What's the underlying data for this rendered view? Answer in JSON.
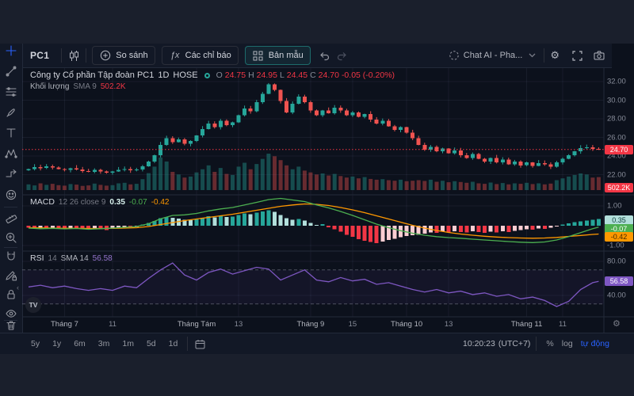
{
  "top_toolbar": {
    "symbol": "PC1",
    "compare_label": "So sánh",
    "indicators_label": "Các chỉ báo",
    "templates_label": "Bản mẫu",
    "chat_label": "Chat AI - Pha..."
  },
  "legend": {
    "title": "Công ty Cổ phần Tập đoàn PC1",
    "interval": "1D",
    "exchange": "HOSE",
    "ohlc": {
      "o_label": "O",
      "o": "24.75",
      "h_label": "H",
      "h": "24.95",
      "l_label": "L",
      "l": "24.45",
      "c_label": "C",
      "c": "24.70",
      "change": "-0.05 (-0.20%)"
    },
    "volume": {
      "name": "Khối lượng",
      "sma": "SMA 9",
      "value": "502.2K"
    }
  },
  "macd_pane": {
    "name": "MACD",
    "params": "12 26 close 9",
    "hist_value": "0.35",
    "macd_value": "-0.07",
    "signal_value": "-0.42",
    "axis_top": "1.00",
    "axis_bottom": "-1.00",
    "badges": [
      {
        "text": "0.35",
        "bg": "#b2dfdb",
        "fg": "#0c3d38"
      },
      {
        "text": "-0.07",
        "bg": "#4caf50",
        "fg": "#ffffff"
      },
      {
        "text": "-0.42",
        "bg": "#ff9800",
        "fg": "#3d2800"
      }
    ]
  },
  "rsi_pane": {
    "name": "RSI",
    "params": "14",
    "sma_label": "SMA 14",
    "value": "56.58",
    "axis_top": "80.00",
    "axis_bottom": "40.00",
    "badge": {
      "text": "56.58",
      "bg": "#7e57c2",
      "fg": "#ffffff"
    }
  },
  "price_axis": {
    "last_badge": {
      "text": "24.70",
      "bg": "#f23645",
      "fg": "#ffffff"
    },
    "volume_badge": {
      "text": "502.2K",
      "bg": "#f23645",
      "fg": "#ffffff"
    }
  },
  "bottom_toolbar": {
    "ranges": [
      "5y",
      "1y",
      "6m",
      "3m",
      "1m",
      "5d",
      "1d"
    ],
    "clock": "10:20:23",
    "timezone": "(UTC+7)",
    "percent_label": "%",
    "log_label": "log",
    "auto_label": "tự động"
  },
  "left_toolbar": {
    "tools": [
      "crosshair",
      "trend-line",
      "fib-retracement",
      "brush",
      "text",
      "xabcd-pattern",
      "forecast",
      "emoji",
      "ruler",
      "zoom-in",
      "magnet",
      "edit-lock",
      "lock-all",
      "hide-all",
      "delete"
    ]
  },
  "tv_logo": "TV",
  "chart_data": {
    "type": "candlestick",
    "symbol": "PC1",
    "interval": "1D",
    "last_price": 24.7,
    "price_ticks": [
      32,
      30,
      28,
      26,
      24,
      22
    ],
    "time_ticks": [
      {
        "i": 6,
        "label": "Tháng 7",
        "major": true
      },
      {
        "i": 14,
        "label": "11",
        "major": false
      },
      {
        "i": 28,
        "label": "Tháng Tám",
        "major": true
      },
      {
        "i": 35,
        "label": "13",
        "major": false
      },
      {
        "i": 47,
        "label": "Tháng 9",
        "major": true
      },
      {
        "i": 54,
        "label": "15",
        "major": false
      },
      {
        "i": 63,
        "label": "Tháng 10",
        "major": true
      },
      {
        "i": 70,
        "label": "13",
        "major": false
      },
      {
        "i": 83,
        "label": "Tháng 11",
        "major": true
      },
      {
        "i": 89,
        "label": "11",
        "major": false
      }
    ],
    "closes": [
      22.6,
      22.8,
      22.7,
      22.9,
      22.75,
      22.6,
      22.5,
      22.7,
      22.55,
      22.4,
      22.3,
      22.5,
      22.35,
      22.2,
      22.35,
      22.5,
      22.6,
      22.45,
      22.55,
      22.9,
      23.4,
      24.1,
      25.2,
      25.9,
      25.5,
      25.8,
      25.3,
      25.6,
      26.2,
      26.9,
      27.5,
      27.1,
      27.8,
      27.3,
      27.6,
      28.4,
      29.1,
      28.8,
      29.8,
      30.7,
      31.7,
      31.1,
      29.9,
      28.7,
      29.6,
      30.4,
      29.8,
      28.9,
      28.4,
      28.9,
      28.6,
      29.2,
      28.9,
      28.4,
      28.7,
      28.2,
      28.5,
      27.9,
      27.5,
      27.8,
      27.2,
      26.8,
      27.1,
      26.5,
      25.9,
      25.2,
      24.7,
      25.0,
      24.5,
      24.8,
      24.3,
      24.6,
      24.1,
      23.8,
      24.2,
      23.7,
      23.4,
      23.8,
      23.3,
      23.6,
      23.1,
      23.4,
      23.0,
      23.3,
      22.95,
      23.25,
      23.1,
      22.85,
      23.3,
      23.7,
      24.1,
      24.5,
      24.85,
      24.95,
      24.75,
      24.7
    ],
    "volumes_k": [
      220,
      180,
      260,
      200,
      240,
      190,
      170,
      230,
      210,
      160,
      180,
      250,
      200,
      170,
      190,
      260,
      280,
      220,
      240,
      420,
      650,
      900,
      1250,
      1100,
      700,
      600,
      480,
      520,
      680,
      800,
      950,
      700,
      850,
      620,
      580,
      900,
      1050,
      800,
      1000,
      1200,
      1400,
      1300,
      1150,
      950,
      800,
      900,
      750,
      680,
      600,
      640,
      560,
      620,
      540,
      480,
      520,
      450,
      500,
      430,
      400,
      420,
      380,
      360,
      400,
      340,
      360,
      380,
      350,
      400,
      320,
      360,
      300,
      340,
      310,
      280,
      320,
      260,
      240,
      290,
      230,
      270,
      220,
      260,
      240,
      280,
      230,
      260,
      220,
      250,
      380,
      450,
      520,
      580,
      640,
      600,
      480,
      500
    ],
    "macd": {
      "axis": [
        1,
        -1
      ],
      "hist": [
        -0.1,
        -0.14,
        -0.12,
        -0.16,
        -0.13,
        -0.15,
        -0.17,
        -0.12,
        -0.14,
        -0.18,
        -0.2,
        -0.15,
        -0.17,
        -0.21,
        -0.16,
        -0.1,
        -0.06,
        -0.09,
        -0.05,
        0.06,
        0.14,
        0.24,
        0.38,
        0.45,
        0.4,
        0.36,
        0.3,
        0.28,
        0.33,
        0.4,
        0.48,
        0.42,
        0.5,
        0.44,
        0.47,
        0.55,
        0.62,
        0.58,
        0.66,
        0.72,
        0.78,
        0.7,
        0.55,
        0.38,
        0.3,
        0.34,
        0.26,
        0.14,
        0.05,
        0.08,
        -0.08,
        -0.18,
        -0.3,
        -0.45,
        -0.55,
        -0.68,
        -0.75,
        -0.82,
        -0.88,
        -0.8,
        -0.72,
        -0.66,
        -0.58,
        -0.52,
        -0.48,
        -0.45,
        -0.4,
        -0.34,
        -0.36,
        -0.3,
        -0.33,
        -0.28,
        -0.31,
        -0.34,
        -0.28,
        -0.32,
        -0.36,
        -0.3,
        -0.34,
        -0.28,
        -0.32,
        -0.26,
        -0.22,
        -0.18,
        -0.2,
        -0.14,
        -0.16,
        -0.1,
        -0.02,
        0.06,
        0.12,
        0.18,
        0.22,
        0.27,
        0.31,
        0.35
      ],
      "idx": [
        0,
        2,
        4,
        6,
        8,
        10,
        12,
        14,
        16,
        18,
        20,
        22,
        24,
        26,
        28,
        30,
        32,
        34,
        36,
        38,
        40,
        42,
        44,
        46,
        48,
        50,
        52,
        54,
        56,
        58,
        60,
        62,
        64,
        66,
        68,
        70,
        72,
        74,
        76,
        78,
        80,
        82,
        84,
        86,
        88,
        90,
        92,
        94,
        95
      ],
      "line": [
        -0.12,
        -0.15,
        -0.13,
        -0.16,
        -0.14,
        -0.18,
        -0.15,
        -0.12,
        -0.08,
        -0.04,
        0.1,
        0.35,
        0.52,
        0.55,
        0.62,
        0.75,
        0.85,
        0.92,
        1.05,
        1.18,
        1.32,
        1.38,
        1.3,
        1.22,
        1.05,
        0.9,
        0.72,
        0.52,
        0.3,
        0.08,
        -0.1,
        -0.25,
        -0.38,
        -0.48,
        -0.55,
        -0.6,
        -0.63,
        -0.68,
        -0.72,
        -0.76,
        -0.8,
        -0.83,
        -0.85,
        -0.82,
        -0.72,
        -0.55,
        -0.35,
        -0.15,
        -0.07
      ],
      "signal": [
        -0.1,
        -0.11,
        -0.12,
        -0.13,
        -0.13,
        -0.14,
        -0.14,
        -0.13,
        -0.12,
        -0.1,
        -0.04,
        0.06,
        0.16,
        0.26,
        0.34,
        0.42,
        0.5,
        0.58,
        0.68,
        0.78,
        0.88,
        0.98,
        1.05,
        1.1,
        1.08,
        1.02,
        0.92,
        0.8,
        0.66,
        0.5,
        0.34,
        0.18,
        0.02,
        -0.12,
        -0.24,
        -0.34,
        -0.42,
        -0.48,
        -0.53,
        -0.57,
        -0.6,
        -0.62,
        -0.63,
        -0.62,
        -0.59,
        -0.54,
        -0.49,
        -0.44,
        -0.42
      ]
    },
    "rsi": {
      "axis": [
        80,
        40
      ],
      "overbought": 70,
      "oversold": 30,
      "last": 56.58,
      "idx": [
        0,
        2,
        4,
        6,
        8,
        10,
        12,
        14,
        16,
        18,
        20,
        22,
        24,
        26,
        28,
        30,
        32,
        34,
        36,
        38,
        40,
        42,
        44,
        46,
        48,
        50,
        52,
        54,
        56,
        58,
        60,
        62,
        64,
        66,
        68,
        70,
        72,
        74,
        76,
        78,
        80,
        82,
        84,
        86,
        88,
        90,
        92,
        94,
        95
      ],
      "val": [
        50,
        52,
        49,
        51,
        48,
        46,
        48,
        46,
        51,
        49,
        60,
        70,
        78,
        64,
        58,
        67,
        71,
        65,
        69,
        73,
        71,
        58,
        64,
        70,
        58,
        56,
        61,
        57,
        59,
        53,
        55,
        51,
        47,
        44,
        47,
        43,
        45,
        41,
        43,
        39,
        41,
        36,
        38,
        34,
        27,
        33,
        47,
        55,
        56.58
      ]
    },
    "colors": {
      "up": "#26a69a",
      "down": "#ef5350",
      "macd_line": "#4caf50",
      "signal_line": "#ff9800",
      "hist_pos": "#26a69a",
      "hist_pos_weak": "#b2dfdb",
      "hist_neg": "#f23645",
      "hist_neg_weak": "#fbcdd2",
      "rsi": "#7e57c2",
      "accent": "#2962ff",
      "last_price": "#f23645"
    }
  }
}
